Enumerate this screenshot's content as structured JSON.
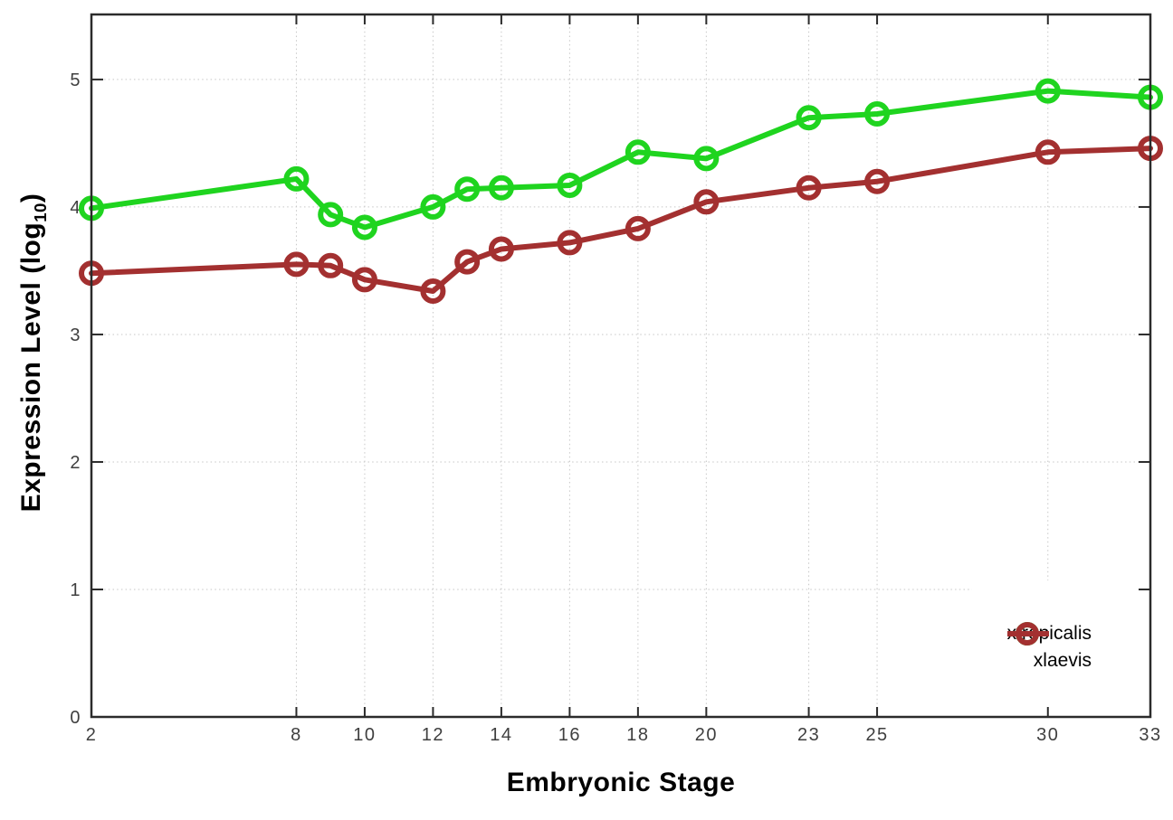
{
  "chart_data": {
    "type": "line",
    "title": "",
    "xlabel": "Embryonic Stage",
    "ylabel": "Expression Level (log10)",
    "ylabel_parts": {
      "prefix": "Expression Level (log",
      "subscript": "10",
      "suffix": ")"
    },
    "x": [
      2,
      8,
      9,
      10,
      12,
      13,
      14,
      16,
      18,
      20,
      23,
      25,
      30,
      33
    ],
    "series": [
      {
        "name": "xtropicalis",
        "color": "#1fd41f",
        "marker": "open-circle",
        "values": [
          3.99,
          4.22,
          3.94,
          3.84,
          4.0,
          4.14,
          4.15,
          4.17,
          4.43,
          4.38,
          4.7,
          4.73,
          4.91,
          4.86
        ]
      },
      {
        "name": "xlaevis",
        "color": "#a33030",
        "marker": "open-circle",
        "values": [
          3.48,
          3.55,
          3.54,
          3.43,
          3.34,
          3.57,
          3.67,
          3.72,
          3.83,
          4.04,
          4.15,
          4.2,
          4.43,
          4.46
        ]
      }
    ],
    "xticks": [
      2,
      8,
      10,
      12,
      14,
      16,
      18,
      20,
      23,
      25,
      30,
      33
    ],
    "xtick_labels": [
      "2",
      "8",
      "10",
      "12",
      "14",
      "16",
      "18",
      "20",
      "23",
      "25",
      "30",
      "33"
    ],
    "yticks": [
      0,
      1,
      2,
      3,
      4,
      5
    ],
    "ytick_labels": [
      "0",
      "1",
      "2",
      "3",
      "4",
      "5"
    ],
    "xlim": [
      2,
      33
    ],
    "ylim": [
      0,
      5.51
    ],
    "grid": true,
    "legend_position": "inside-bottom-right",
    "colors": {
      "grid": "#c7c7c7",
      "frame": "#2b2b2b",
      "tick_label": "#3f3f3f",
      "axis_title": "#000000",
      "background": "#ffffff"
    }
  }
}
